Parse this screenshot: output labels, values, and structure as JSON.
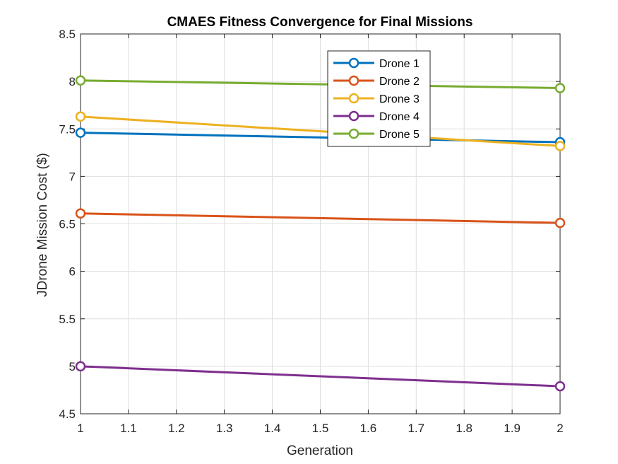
{
  "chart_data": {
    "type": "line",
    "title": "CMAES Fitness Convergence for Final Missions",
    "xlabel": "Generation",
    "ylabel": "JDrone Mission Cost ($)",
    "xlim": [
      1,
      2
    ],
    "ylim": [
      4.5,
      8.5
    ],
    "xticks": [
      "1",
      "1.1",
      "1.2",
      "1.3",
      "1.4",
      "1.5",
      "1.6",
      "1.7",
      "1.8",
      "1.9",
      "2"
    ],
    "yticks": [
      "4.5",
      "5",
      "5.5",
      "6",
      "6.5",
      "7",
      "7.5",
      "8",
      "8.5"
    ],
    "grid": true,
    "legend_position": "top-center",
    "x": [
      1,
      2
    ],
    "series": [
      {
        "name": "Drone 1",
        "color": "#0072BD",
        "values": [
          7.46,
          7.36
        ]
      },
      {
        "name": "Drone 2",
        "color": "#D95319",
        "values": [
          6.61,
          6.51
        ]
      },
      {
        "name": "Drone 3",
        "color": "#EDB120",
        "values": [
          7.63,
          7.32
        ]
      },
      {
        "name": "Drone 4",
        "color": "#7E2F8E",
        "values": [
          5.0,
          4.79
        ]
      },
      {
        "name": "Drone 5",
        "color": "#77AC30",
        "values": [
          8.01,
          7.93
        ]
      }
    ]
  }
}
